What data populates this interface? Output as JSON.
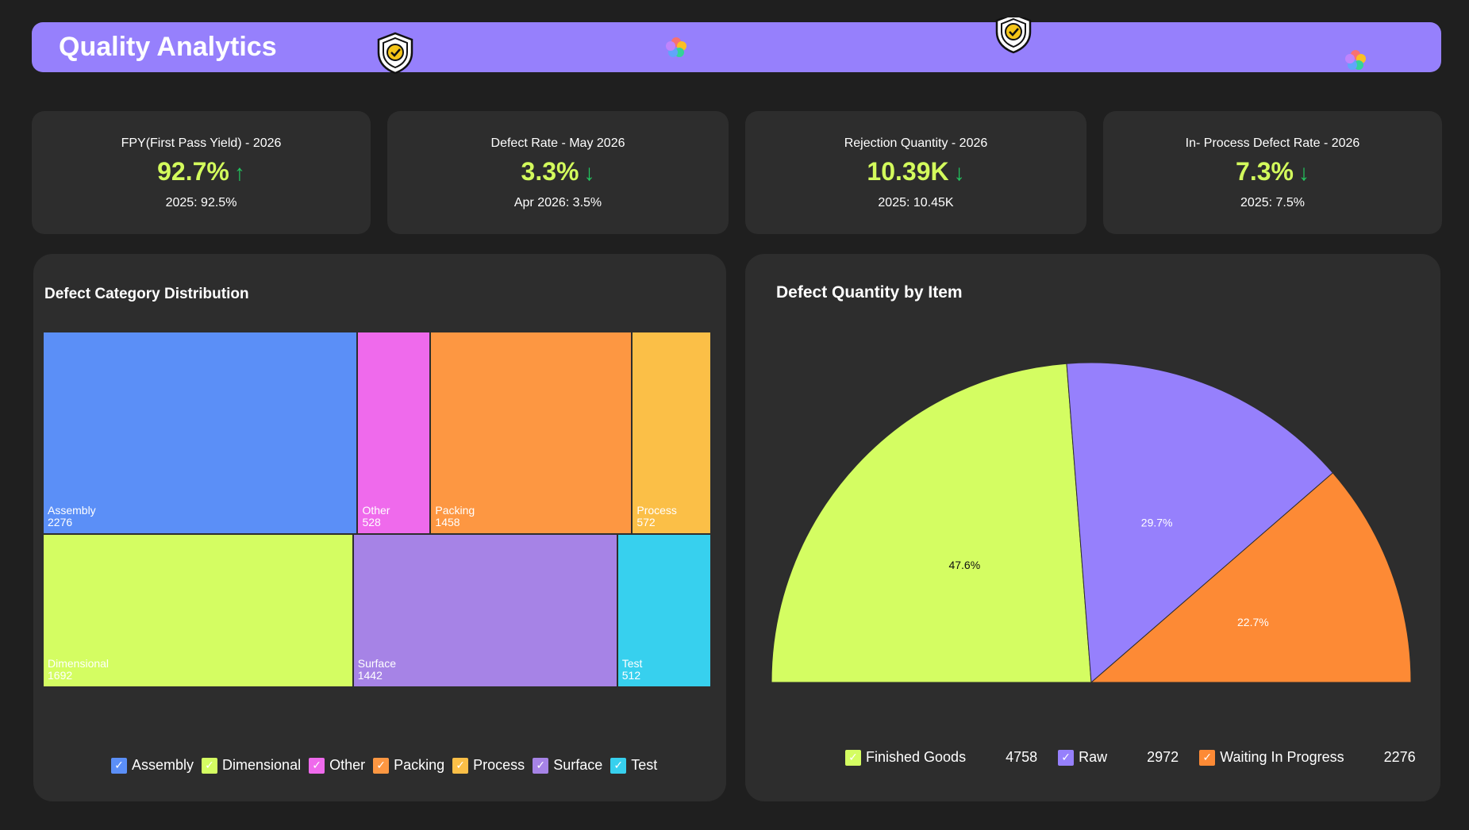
{
  "header": {
    "title": "Quality Analytics"
  },
  "kpis": [
    {
      "title": "FPY(First Pass Yield) - 2026",
      "value": "92.7%",
      "arrow": "↑",
      "sub": "2025: 92.5%"
    },
    {
      "title": "Defect Rate - May 2026",
      "value": "3.3%",
      "arrow": "↓",
      "sub": "Apr 2026: 3.5%"
    },
    {
      "title": "Rejection Quantity - 2026",
      "value": "10.39K",
      "arrow": "↓",
      "sub": "2025: 10.45K"
    },
    {
      "title": "In- Process Defect Rate - 2026",
      "value": "7.3%",
      "arrow": "↓",
      "sub": "2025: 7.5%"
    }
  ],
  "treemap": {
    "title": "Defect Category Distribution",
    "legend": [
      "Assembly",
      "Dimensional",
      "Other",
      "Packing",
      "Process",
      "Surface",
      "Test"
    ]
  },
  "pie": {
    "title": "Defect Quantity by Item",
    "legend": [
      {
        "label": "Finished Goods",
        "value": "4758"
      },
      {
        "label": "Raw",
        "value": "2972"
      },
      {
        "label": "Waiting In Progress",
        "value": "2276"
      }
    ]
  },
  "colors": {
    "header": "#9680fc",
    "accent_value": "#d3fb5c",
    "arrow": "#22c55e",
    "Assembly": "#5b8ff7",
    "Dimensional": "#d4fd62",
    "Other": "#ef6aec",
    "Packing": "#fd9742",
    "Process": "#fbbf47",
    "Surface": "#a683e6",
    "Test": "#37d0ee",
    "Finished Goods": "#d4fd62",
    "Raw": "#9680fc",
    "Waiting In Progress": "#fd8a35"
  },
  "chart_data": [
    {
      "type": "treemap",
      "title": "Defect Category Distribution",
      "categories": [
        "Assembly",
        "Dimensional",
        "Other",
        "Packing",
        "Process",
        "Surface",
        "Test"
      ],
      "values": [
        2276,
        1692,
        528,
        1458,
        572,
        1442,
        512
      ]
    },
    {
      "type": "pie",
      "title": "Defect Quantity by Item",
      "style": "semicircle",
      "categories": [
        "Finished Goods",
        "Raw",
        "Waiting In Progress"
      ],
      "values": [
        4758,
        2972,
        2276
      ],
      "percent_labels": [
        "47.6%",
        "29.7%",
        "22.7%"
      ]
    }
  ]
}
